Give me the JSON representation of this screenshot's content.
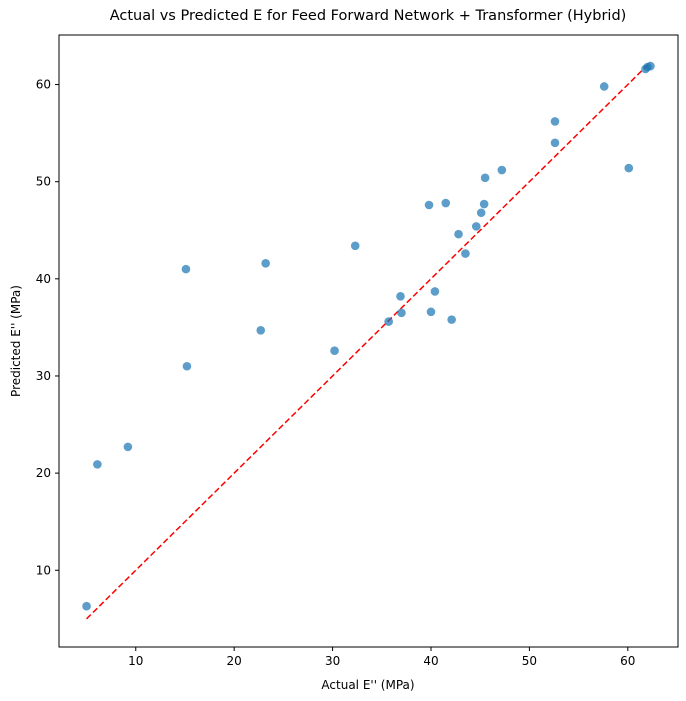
{
  "chart_data": {
    "type": "scatter",
    "title": "Actual vs Predicted E for Feed Forward Network + Transformer (Hybrid)",
    "xlabel": "Actual E'' (MPa)",
    "ylabel": "Predicted E'' (MPa)",
    "xlim": [
      2.2,
      65.1
    ],
    "ylim": [
      2.1,
      65.1
    ],
    "xticks": [
      10,
      20,
      30,
      40,
      50,
      60
    ],
    "yticks": [
      10,
      20,
      30,
      40,
      50,
      60
    ],
    "grid": false,
    "point_color": "#1f77b4",
    "reference_line": {
      "style": "dashed",
      "color": "#ff0000",
      "from": [
        5.0,
        5.0
      ],
      "to": [
        62.3,
        62.3
      ]
    },
    "points": [
      {
        "x": 5.0,
        "y": 6.3
      },
      {
        "x": 6.1,
        "y": 20.9
      },
      {
        "x": 9.2,
        "y": 22.7
      },
      {
        "x": 15.1,
        "y": 41.0
      },
      {
        "x": 15.2,
        "y": 31.0
      },
      {
        "x": 22.7,
        "y": 34.7
      },
      {
        "x": 23.2,
        "y": 41.6
      },
      {
        "x": 30.2,
        "y": 32.6
      },
      {
        "x": 32.3,
        "y": 43.4
      },
      {
        "x": 35.7,
        "y": 35.6
      },
      {
        "x": 36.9,
        "y": 38.2
      },
      {
        "x": 37.0,
        "y": 36.5
      },
      {
        "x": 39.8,
        "y": 47.6
      },
      {
        "x": 40.0,
        "y": 36.6
      },
      {
        "x": 40.4,
        "y": 38.7
      },
      {
        "x": 41.5,
        "y": 47.8
      },
      {
        "x": 42.1,
        "y": 35.8
      },
      {
        "x": 42.8,
        "y": 44.6
      },
      {
        "x": 43.5,
        "y": 42.6
      },
      {
        "x": 44.6,
        "y": 45.4
      },
      {
        "x": 45.1,
        "y": 46.8
      },
      {
        "x": 45.4,
        "y": 47.7
      },
      {
        "x": 45.5,
        "y": 50.4
      },
      {
        "x": 47.2,
        "y": 51.2
      },
      {
        "x": 52.6,
        "y": 56.2
      },
      {
        "x": 52.6,
        "y": 54.0
      },
      {
        "x": 57.6,
        "y": 59.8
      },
      {
        "x": 60.1,
        "y": 51.4
      },
      {
        "x": 61.8,
        "y": 61.6
      },
      {
        "x": 62.0,
        "y": 61.8
      },
      {
        "x": 62.3,
        "y": 61.9
      }
    ]
  }
}
